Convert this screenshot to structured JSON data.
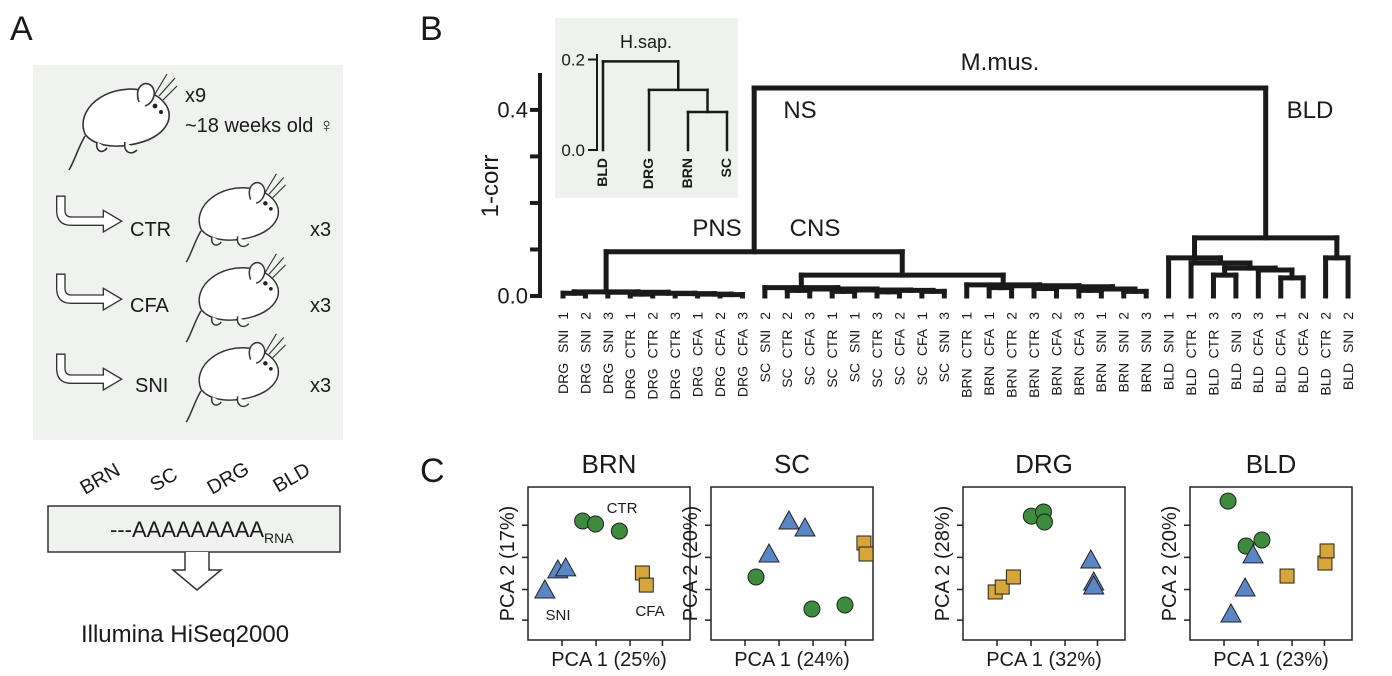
{
  "panel_labels": [
    "A",
    "B",
    "C"
  ],
  "panel_a": {
    "group_size": "x9",
    "age": "~18 weeks old ♀",
    "conditions": [
      {
        "name": "CTR",
        "n": "x3"
      },
      {
        "name": "CFA",
        "n": "x3"
      },
      {
        "name": "SNI",
        "n": "x3"
      }
    ],
    "tissues": [
      "BRN",
      "SC",
      "DRG",
      "BLD"
    ],
    "rna": "---AAAAAAAAA",
    "rna_subscript": "RNA",
    "sequencer": "Illumina HiSeq2000"
  },
  "chart_data": [
    {
      "type": "dendrogram",
      "ylabel": "1-corr",
      "ylim": [
        0,
        0.475
      ],
      "yticks": [
        {
          "value": 0,
          "label": "0.0"
        },
        {
          "value": 0.4,
          "label": "0.4"
        }
      ],
      "minor_yticks": [
        0.1,
        0.2,
        0.3
      ],
      "leaves": [
        "DRG SNI 1",
        "DRG SNI 2",
        "DRG SNI 3",
        "DRG CTR 1",
        "DRG CTR 2",
        "DRG CTR 3",
        "DRG CFA 1",
        "DRG CFA 2",
        "DRG CFA 3",
        "SC SNI 2",
        "SC CTR 2",
        "SC CFA 3",
        "SC CTR 1",
        "SC SNI 1",
        "SC CTR 3",
        "SC CFA 2",
        "SC CFA 1",
        "SC SNI 3",
        "BRN CTR 1",
        "BRN CFA 1",
        "BRN CTR 2",
        "BRN CTR 3",
        "BRN CFA 2",
        "BRN CFA 3",
        "BRN SNI 1",
        "BRN SNI 2",
        "BRN SNI 3",
        "BLD SNI 1",
        "BLD CTR 1",
        "BLD CTR 3",
        "BLD SNI 3",
        "BLD CFA 3",
        "BLD CFA 1",
        "BLD CFA 2",
        "BLD CTR 2",
        "BLD SNI 2"
      ],
      "tree": {
        "height": 0.447,
        "children": [
          {
            "height": 0.095,
            "children": [
              {
                "height": 0.009,
                "children": [
                  {
                    "height": 0.006,
                    "children": [
                      0,
                      1
                    ]
                  },
                  {
                    "height": 0.008,
                    "children": [
                      2,
                      {
                        "height": 0.006,
                        "children": [
                          {
                            "height": 0.004,
                            "children": [
                              3,
                              4
                            ]
                          },
                          {
                            "height": 0.005,
                            "children": [
                              5,
                              {
                                "height": 0.004,
                                "children": [
                                  6,
                                  {
                                    "height": 0.003,
                                    "children": [
                                      7,
                                      8
                                    ]
                                  }
                                ]
                              }
                            ]
                          }
                        ]
                      }
                    ]
                  }
                ]
              },
              {
                "height": 0.045,
                "children": [
                  {
                    "height": 0.018,
                    "children": [
                      9,
                      {
                        "height": 0.015,
                        "children": [
                          {
                            "height": 0.012,
                            "children": [
                              10,
                              11
                            ]
                          },
                          {
                            "height": 0.013,
                            "children": [
                              {
                                "height": 0.01,
                                "children": [
                                  12,
                                  13
                                ]
                              },
                              {
                                "height": 0.012,
                                "children": [
                                  {
                                    "height": 0.009,
                                    "children": [
                                      14,
                                      15
                                    ]
                                  },
                                  {
                                    "height": 0.01,
                                    "children": [
                                      16,
                                      17
                                    ]
                                  }
                                ]
                              }
                            ]
                          }
                        ]
                      }
                    ]
                  },
                  {
                    "height": 0.024,
                    "children": [
                      18,
                      {
                        "height": 0.022,
                        "children": [
                          {
                            "height": 0.018,
                            "children": [
                              19,
                              20
                            ]
                          },
                          {
                            "height": 0.02,
                            "children": [
                              {
                                "height": 0.016,
                                "children": [
                                  21,
                                  22
                                ]
                              },
                              {
                                "height": 0.015,
                                "children": [
                                  {
                                    "height": 0.012,
                                    "children": [
                                      23,
                                      24
                                    ]
                                  },
                                  {
                                    "height": 0.01,
                                    "children": [
                                      25,
                                      26
                                    ]
                                  }
                                ]
                              }
                            ]
                          }
                        ]
                      }
                    ]
                  }
                ]
              }
            ]
          },
          {
            "height": 0.125,
            "children": [
              {
                "height": 0.082,
                "children": [
                  27,
                  {
                    "height": 0.071,
                    "children": [
                      28,
                      {
                        "height": 0.06,
                        "children": [
                          {
                            "height": 0.045,
                            "children": [
                              29,
                              30
                            ]
                          },
                          {
                            "height": 0.056,
                            "children": [
                              31,
                              {
                                "height": 0.039,
                                "children": [
                                  32,
                                  33
                                ]
                              }
                            ]
                          }
                        ]
                      }
                    ]
                  }
                ]
              },
              {
                "height": 0.082,
                "children": [
                  34,
                  35
                ]
              }
            ]
          }
        ]
      },
      "annotations": [
        {
          "text": "M.mus."
        },
        {
          "text": "NS"
        },
        {
          "text": "BLD"
        },
        {
          "text": "PNS"
        },
        {
          "text": "CNS"
        }
      ]
    },
    {
      "type": "dendrogram",
      "title": "H.sap.",
      "ylim": [
        0,
        0.21
      ],
      "yticks": [
        {
          "value": 0,
          "label": "0.0"
        },
        {
          "value": 0.2,
          "label": "0.2"
        }
      ],
      "leaves": [
        "BLD",
        "DRG",
        "BRN",
        "SC"
      ],
      "tree": {
        "height": 0.196,
        "children": [
          0,
          {
            "height": 0.133,
            "children": [
              1,
              {
                "height": 0.084,
                "children": [
                  2,
                  3
                ]
              }
            ]
          }
        ]
      }
    },
    {
      "type": "scatter",
      "title": "BRN",
      "xlabel": "PCA 1 (25%)",
      "ylabel": "PCA 2 (17%)",
      "xlim": [
        0,
        100
      ],
      "ylim": [
        0,
        100
      ],
      "minor_xticks": [
        21,
        42,
        63,
        83
      ],
      "minor_yticks": [
        13,
        33,
        54,
        75
      ],
      "series": [
        {
          "marker": "circle",
          "color": "#3d8b3d",
          "x": [
            33.7,
            41.7,
            56.4
          ],
          "values": [
            77.8,
            75.8,
            71.2
          ]
        },
        {
          "marker": "triangle",
          "color": "#5b86c5",
          "x": [
            18.4,
            23.3,
            10.4
          ],
          "values": [
            45.8,
            47.1,
            32.7
          ]
        },
        {
          "marker": "square",
          "color": "#d6a63a",
          "x": [
            70.6,
            73.0
          ],
          "values": [
            43.8,
            35.9
          ]
        }
      ],
      "annotations": [
        {
          "text": "CTR"
        },
        {
          "text": "SNI"
        },
        {
          "text": "CFA"
        }
      ]
    },
    {
      "type": "scatter",
      "title": "SC",
      "xlabel": "PCA 1 (24%)",
      "ylabel": "PCA 2 (20%)",
      "xlim": [
        0,
        100
      ],
      "ylim": [
        0,
        100
      ],
      "minor_xticks": [
        21,
        42,
        63,
        83
      ],
      "minor_yticks": [
        13,
        33,
        54,
        75
      ],
      "series": [
        {
          "marker": "circle",
          "color": "#3d8b3d",
          "x": [
            27.8,
            62.3,
            82.7
          ],
          "values": [
            41.2,
            20.3,
            22.9
          ]
        },
        {
          "marker": "triangle",
          "color": "#5b86c5",
          "x": [
            35.8,
            48.1,
            58.0
          ],
          "values": [
            56.2,
            77.8,
            73.2
          ]
        },
        {
          "marker": "square",
          "color": "#d6a63a",
          "x": [
            94.4,
            95.7
          ],
          "values": [
            63.4,
            56.2
          ]
        }
      ]
    },
    {
      "type": "scatter",
      "title": "DRG",
      "xlabel": "PCA 1 (32%)",
      "ylabel": "PCA 2 (28%)",
      "xlim": [
        0,
        100
      ],
      "ylim": [
        0,
        100
      ],
      "minor_xticks": [
        21,
        42,
        63,
        83
      ],
      "minor_yticks": [
        13,
        33,
        54,
        75
      ],
      "series": [
        {
          "marker": "circle",
          "color": "#3d8b3d",
          "x": [
            42.2,
            49.7,
            50.3
          ],
          "values": [
            81.0,
            83.7,
            77.1
          ]
        },
        {
          "marker": "triangle",
          "color": "#5b86c5",
          "x": [
            78.9,
            80.7,
            80.7
          ],
          "values": [
            52.3,
            37.9,
            35.3
          ]
        },
        {
          "marker": "square",
          "color": "#d6a63a",
          "x": [
            19.9,
            24.2,
            31.1
          ],
          "values": [
            31.4,
            34.6,
            41.2
          ]
        }
      ]
    },
    {
      "type": "scatter",
      "title": "BLD",
      "xlabel": "PCA 1 (23%)",
      "ylabel": "PCA 2 (20%)",
      "xlim": [
        0,
        100
      ],
      "ylim": [
        0,
        100
      ],
      "minor_xticks": [
        21,
        42,
        63,
        83
      ],
      "minor_yticks": [
        13,
        33,
        54,
        75
      ],
      "series": [
        {
          "marker": "circle",
          "color": "#3d8b3d",
          "x": [
            23.5,
            34.6,
            44.4
          ],
          "values": [
            90.8,
            61.4,
            65.4
          ]
        },
        {
          "marker": "triangle",
          "color": "#5b86c5",
          "x": [
            34.0,
            25.3,
            38.9
          ],
          "values": [
            34.0,
            17.0,
            55.6
          ]
        },
        {
          "marker": "square",
          "color": "#d6a63a",
          "x": [
            59.9,
            83.3,
            84.6
          ],
          "values": [
            41.8,
            50.3,
            58.2
          ]
        }
      ]
    }
  ]
}
